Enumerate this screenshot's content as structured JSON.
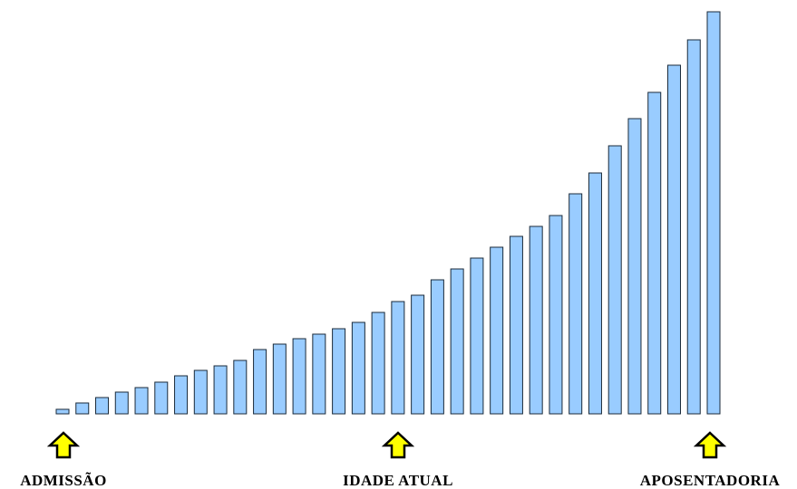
{
  "chart_data": {
    "type": "bar",
    "values": [
      5,
      12,
      18,
      24,
      29,
      35,
      42,
      48,
      53,
      59,
      71,
      77,
      83,
      88,
      94,
      101,
      112,
      124,
      131,
      148,
      160,
      172,
      184,
      196,
      207,
      219,
      243,
      266,
      296,
      326,
      355,
      385,
      413,
      444
    ],
    "color": "#99ccff",
    "annotations": [
      "ADMISSÃO",
      "IDADE ATUAL",
      "APOSENTADORIA"
    ]
  }
}
